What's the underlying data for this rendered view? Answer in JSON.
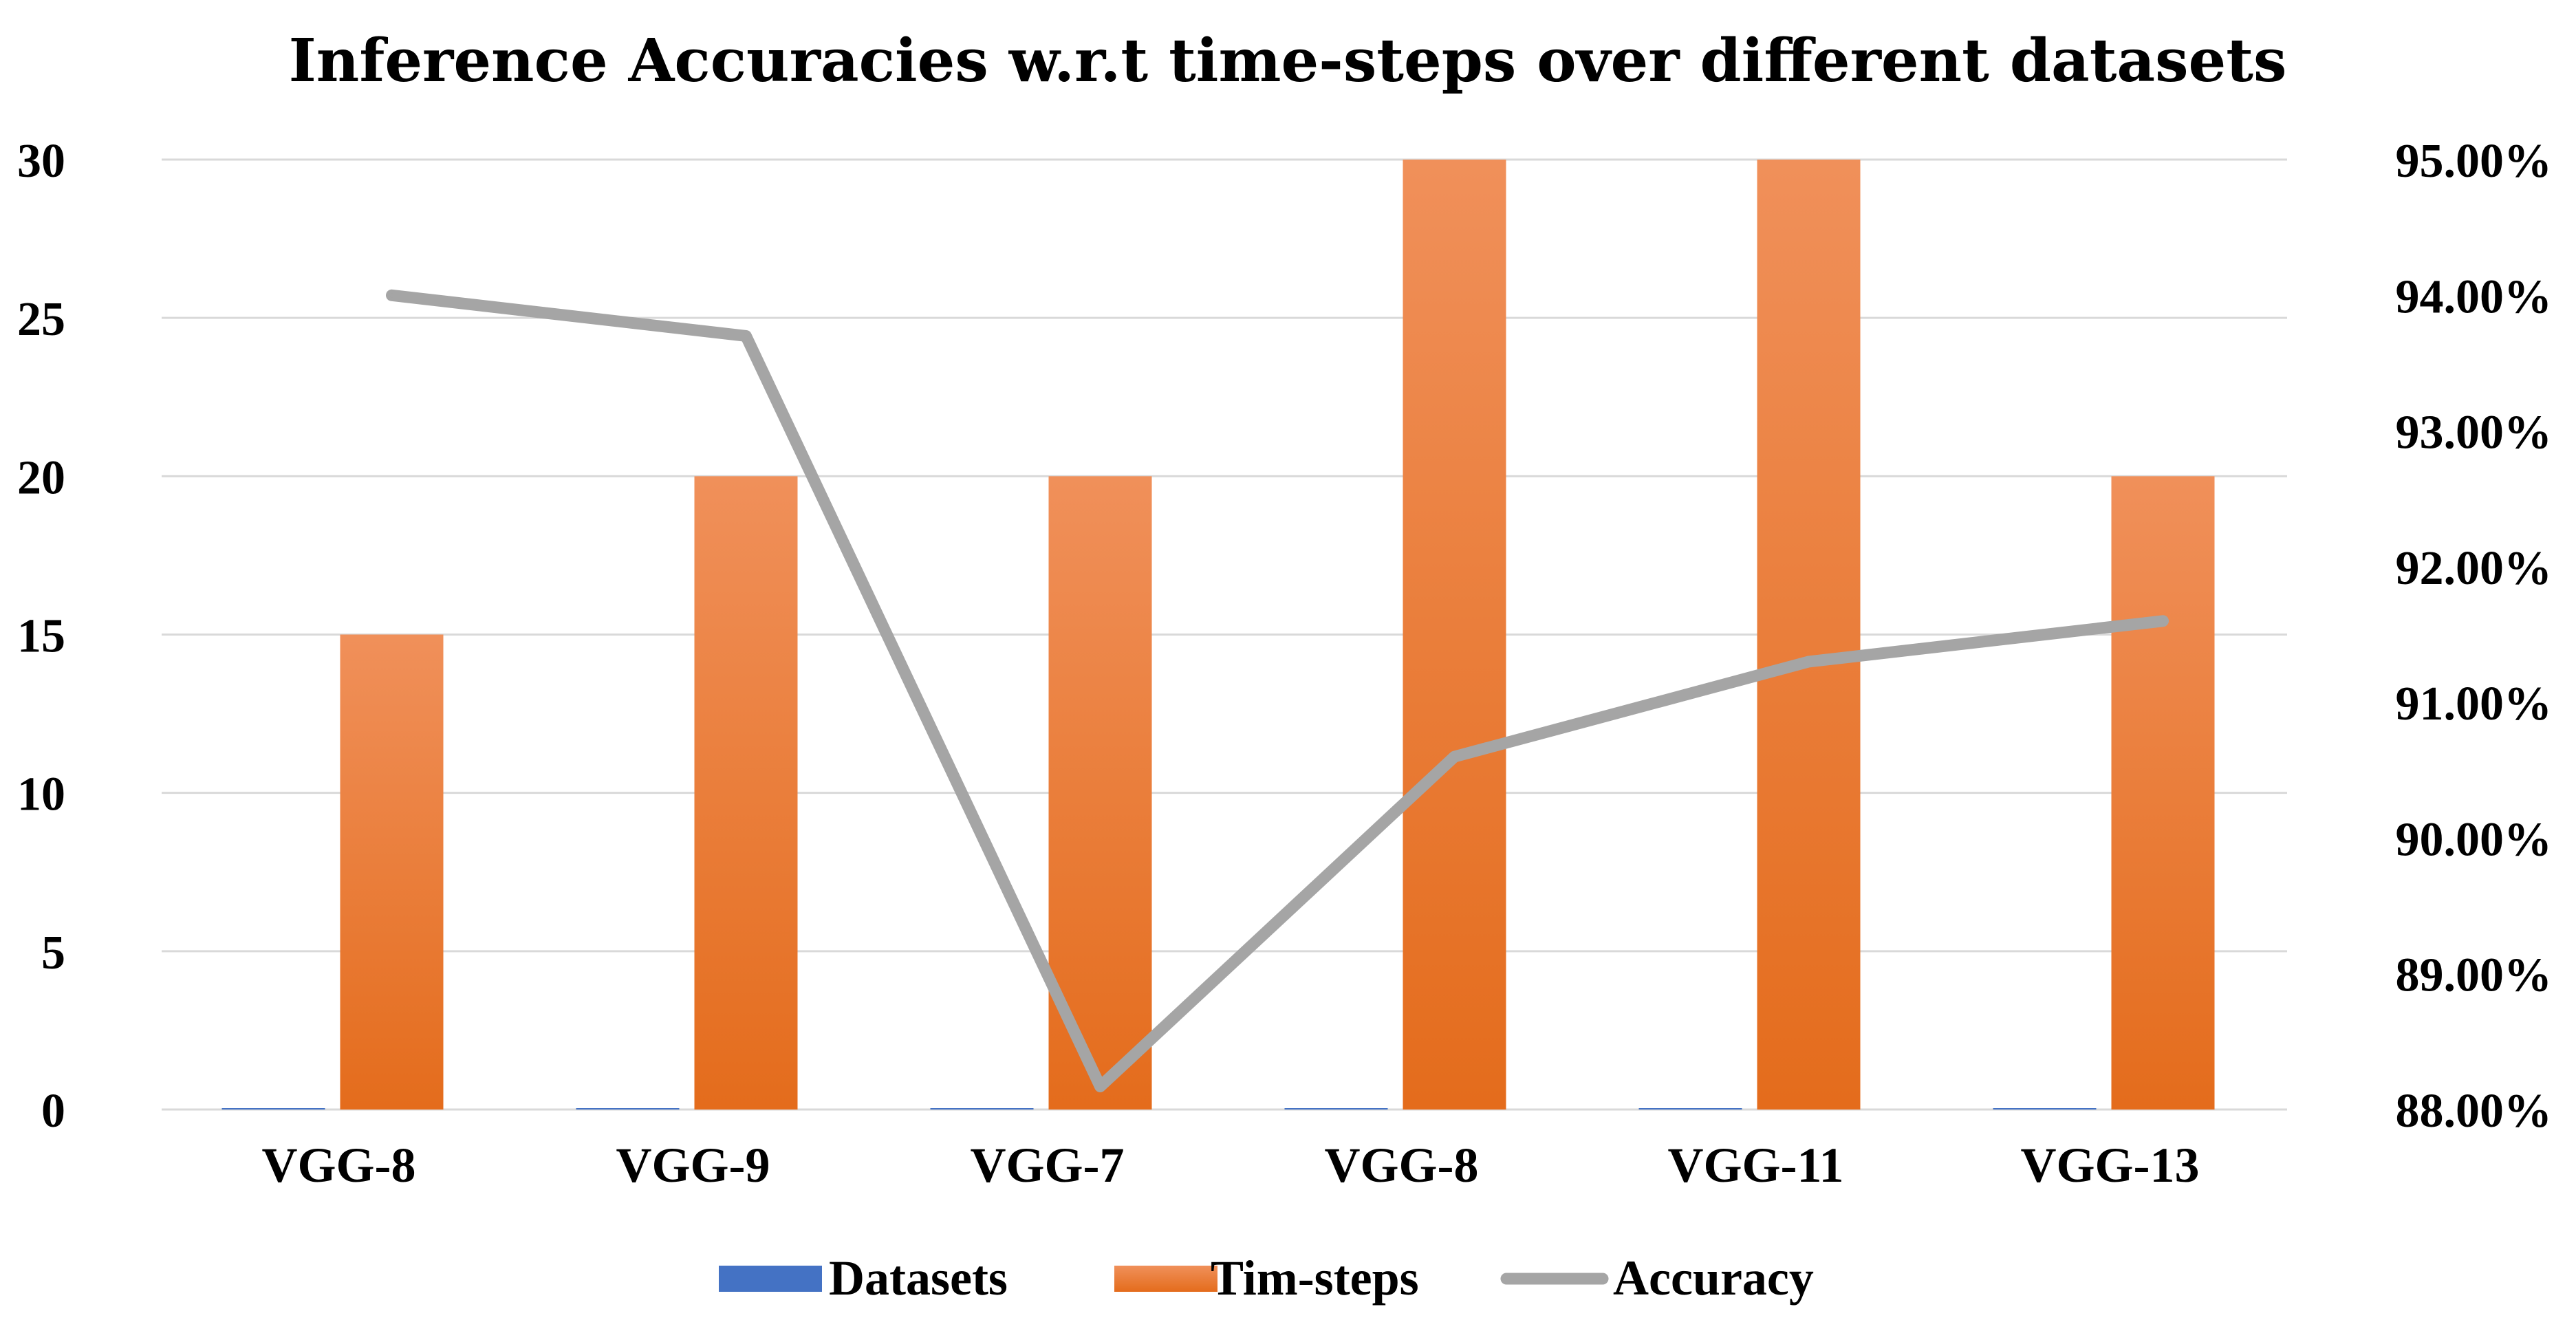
{
  "chart_data": {
    "type": "bar",
    "title": "Inference Accuracies w.r.t time-steps over different datasets",
    "categories": [
      "VGG-8",
      "VGG-9",
      "VGG-7",
      "VGG-8",
      "VGG-11",
      "VGG-13"
    ],
    "y_left": {
      "min": 0,
      "max": 30,
      "ticks": [
        0,
        5,
        10,
        15,
        20,
        25,
        30
      ],
      "tick_labels": [
        "0",
        "5",
        "10",
        "15",
        "20",
        "25",
        "30"
      ]
    },
    "y_right": {
      "min": 0.88,
      "max": 0.95,
      "ticks": [
        0.88,
        0.89,
        0.9,
        0.91,
        0.92,
        0.93,
        0.94,
        0.95
      ],
      "tick_labels": [
        "88.00%",
        "89.00%",
        "90.00%",
        "91.00%",
        "92.00%",
        "93.00%",
        "94.00%",
        "95.00%"
      ]
    },
    "grid": true,
    "legend_position": "bottom",
    "series": [
      {
        "name": "Datasets",
        "type": "bar",
        "axis": "left",
        "color": "#4472C4",
        "values": [
          0,
          0,
          0,
          0,
          0,
          0
        ]
      },
      {
        "name": "Tim-steps",
        "type": "bar",
        "axis": "left",
        "color": "#ED7D31",
        "values": [
          15,
          20,
          20,
          30,
          30,
          20
        ]
      },
      {
        "name": "Accuracy",
        "type": "line",
        "axis": "right",
        "color": "#A5A5A5",
        "values": [
          0.94,
          0.937,
          0.8817,
          0.906,
          0.913,
          0.916
        ]
      }
    ]
  }
}
